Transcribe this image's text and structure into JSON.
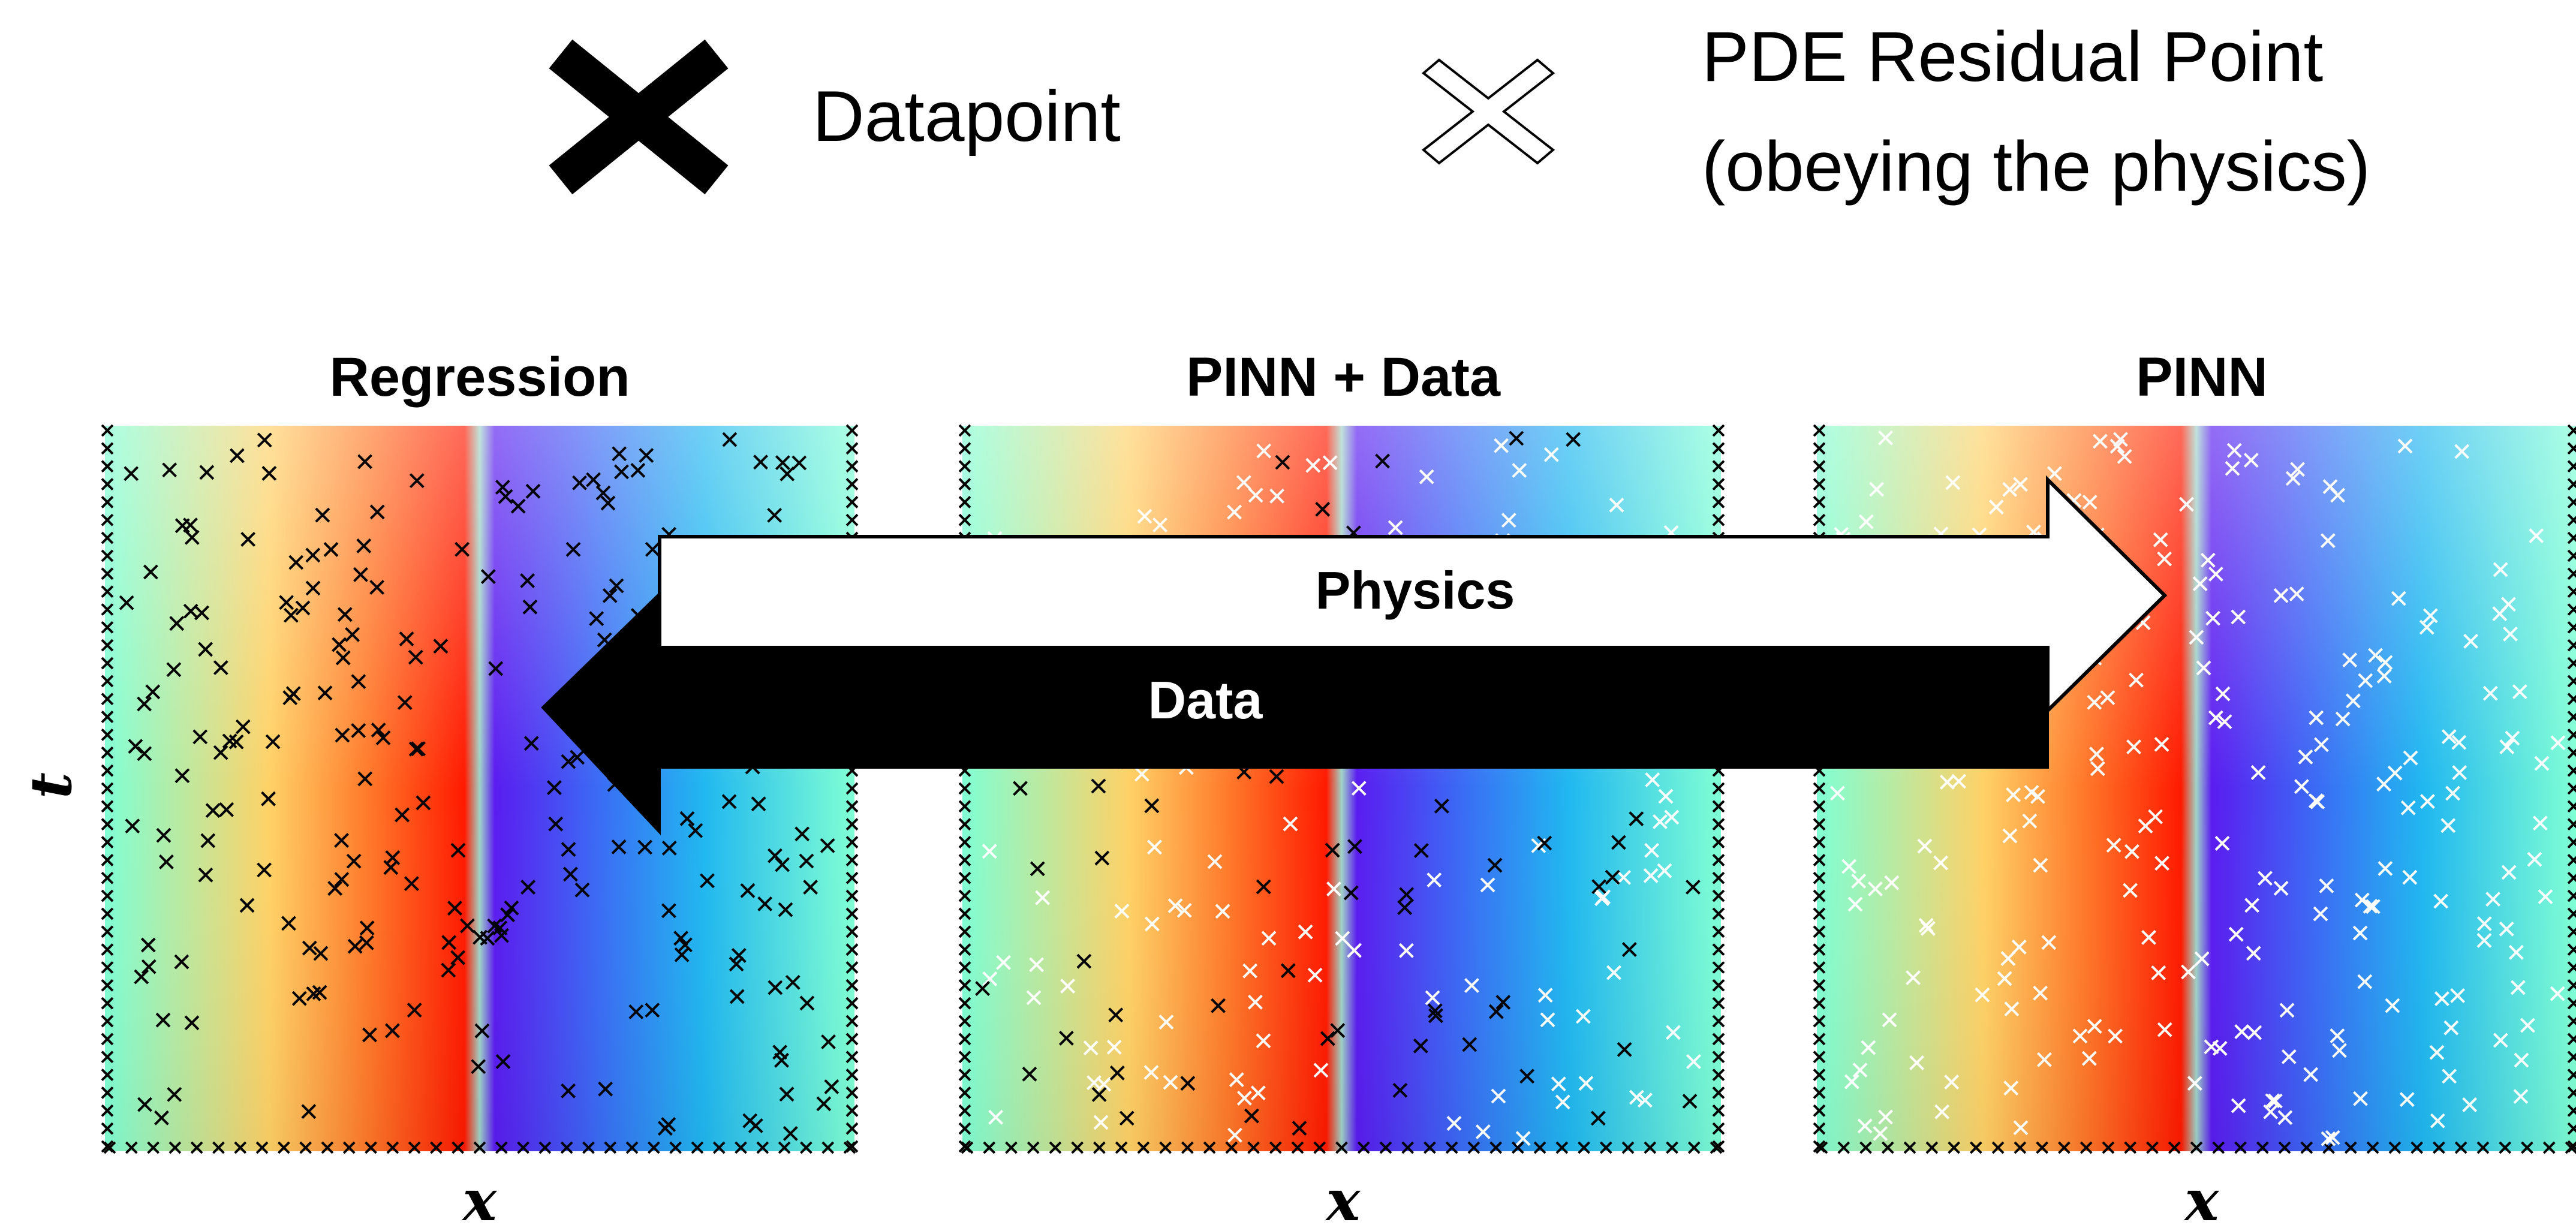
{
  "legend": {
    "datapoint_label": "Datapoint",
    "residual_label_line1": "PDE Residual Point",
    "residual_label_line2": "(obeying the physics)"
  },
  "panels": [
    {
      "title": "Regression",
      "xlabel": "x",
      "points": "data"
    },
    {
      "title": "PINN + Data",
      "xlabel": "x",
      "points": "mixed"
    },
    {
      "title": "PINN",
      "xlabel": "x",
      "points": "residual"
    }
  ],
  "ylabel": "t",
  "arrows": {
    "physics_label": "Physics",
    "data_label": "Data"
  },
  "colors": {
    "colormap": [
      "#7fffd4",
      "#ff9a3c",
      "#ff1a00",
      "#5a1cf0",
      "#1e90ff",
      "#7fffd4"
    ],
    "datapoint_marker": "#000000",
    "residual_marker": "#ffffff"
  }
}
